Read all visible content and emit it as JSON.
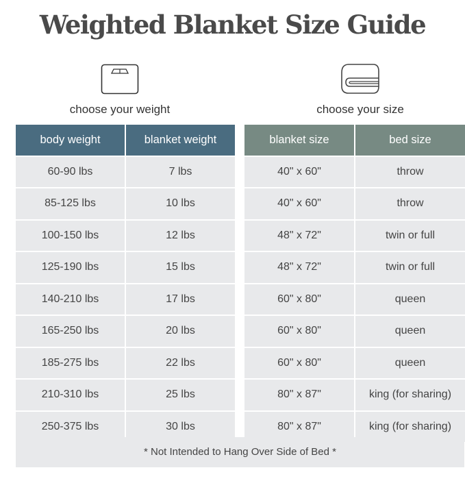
{
  "title": "Weighted Blanket Size Guide",
  "colors": {
    "left_header": "#4a6c80",
    "right_header": "#778a83",
    "cell": "#e8e9eb"
  },
  "left": {
    "icon": "scale-icon",
    "caption": "choose your weight",
    "headers": [
      "body weight",
      "blanket weight"
    ],
    "rows": [
      [
        "60-90 lbs",
        "7 lbs"
      ],
      [
        "85-125 lbs",
        "10 lbs"
      ],
      [
        "100-150 lbs",
        "12 lbs"
      ],
      [
        "125-190 lbs",
        "15 lbs"
      ],
      [
        "140-210 lbs",
        "17 lbs"
      ],
      [
        "165-250 lbs",
        "20 lbs"
      ],
      [
        "185-275 lbs",
        "22 lbs"
      ],
      [
        "210-310 lbs",
        "25 lbs"
      ],
      [
        "250-375 lbs",
        "30 lbs"
      ]
    ]
  },
  "right": {
    "icon": "folded-blanket-icon",
    "caption": "choose your size",
    "headers": [
      "blanket size",
      "bed size"
    ],
    "rows": [
      [
        "40\" x 60\"",
        "throw"
      ],
      [
        "40\" x 60\"",
        "throw"
      ],
      [
        "48\" x 72\"",
        "twin or full"
      ],
      [
        "48\" x 72\"",
        "twin or full"
      ],
      [
        "60\" x 80\"",
        "queen"
      ],
      [
        "60\" x 80\"",
        "queen"
      ],
      [
        "60\" x 80\"",
        "queen"
      ],
      [
        "80\" x 87\"",
        "king (for sharing)"
      ],
      [
        "80\" x 87\"",
        "king (for sharing)"
      ]
    ]
  },
  "footer": "* Not Intended to Hang Over Side of Bed *"
}
